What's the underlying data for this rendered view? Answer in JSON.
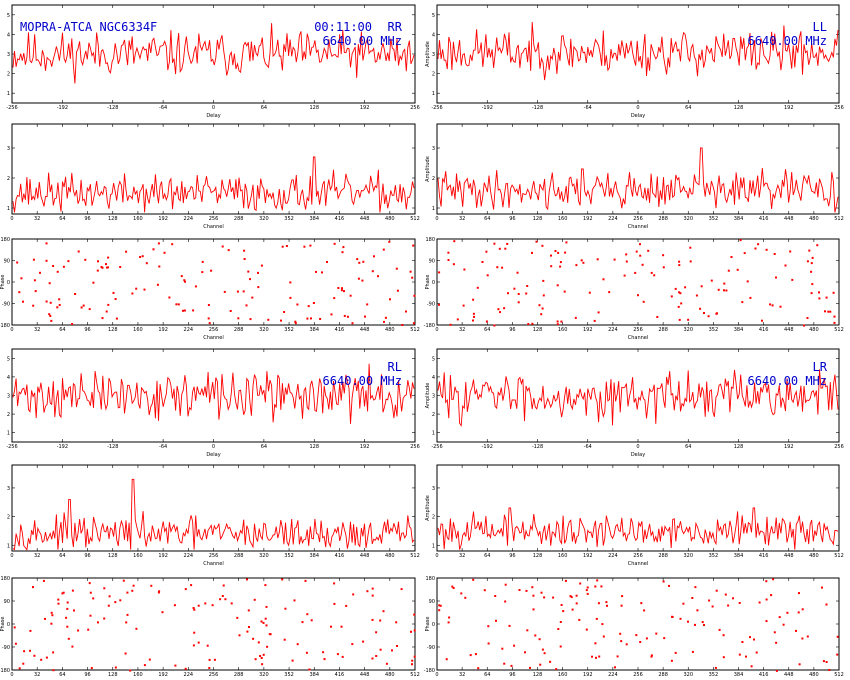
{
  "header": {
    "title": "MOPRA-ATCA NGC6334F",
    "time": "00:11:00",
    "frequency": "6640.00 MHz"
  },
  "colors": {
    "trace": "#ff0000",
    "annotation": "#0000cc",
    "frame": "#000000"
  },
  "panels": [
    {
      "id": "rr",
      "polarization": "RR",
      "frequency": "6640.00 MHz"
    },
    {
      "id": "ll",
      "polarization": "LL",
      "frequency": "6640.00 MHz"
    },
    {
      "id": "rl",
      "polarization": "RL",
      "frequency": "6640.00 MHz"
    },
    {
      "id": "lr",
      "polarization": "LR",
      "frequency": "6640.00 MHz"
    }
  ],
  "chart_data": [
    {
      "panel": "rr",
      "type": "line",
      "xlabel": "Delay",
      "ylabel": "",
      "xlim": [
        -256,
        256
      ],
      "xticks": [
        "-256",
        "-192",
        "-128",
        "-64",
        "0",
        "64",
        "128",
        "192",
        "256"
      ],
      "yticks": [
        "1",
        "2",
        "3",
        "4",
        "5"
      ],
      "ylim": [
        0.5,
        5.5
      ],
      "seed": 11,
      "mean": 3.0,
      "noise": 0.55,
      "peaks": []
    },
    {
      "panel": "ll",
      "type": "line",
      "xlabel": "Delay",
      "ylabel": "Amplitude",
      "xlim": [
        -256,
        256
      ],
      "xticks": [
        "-256",
        "-192",
        "-128",
        "-64",
        "0",
        "64",
        "128",
        "192",
        "256"
      ],
      "yticks": [
        "1",
        "2",
        "3",
        "4",
        "5"
      ],
      "ylim": [
        0.5,
        5.5
      ],
      "seed": 23,
      "mean": 3.1,
      "noise": 0.55,
      "peaks": []
    },
    {
      "panel": "rr",
      "type": "line",
      "xlabel": "Channel",
      "ylabel": "",
      "xlim": [
        0,
        512
      ],
      "xticks": [
        "0",
        "32",
        "64",
        "96",
        "128",
        "160",
        "192",
        "224",
        "256",
        "288",
        "320",
        "352",
        "384",
        "416",
        "448",
        "480",
        "512"
      ],
      "yticks": [
        "1",
        "2",
        "3"
      ],
      "ylim": [
        0.8,
        3.8
      ],
      "seed": 37,
      "mean": 1.5,
      "noise": 0.3,
      "peaks": [
        [
          0.75,
          2.7
        ]
      ]
    },
    {
      "panel": "ll",
      "type": "line",
      "xlabel": "Channel",
      "ylabel": "Amplitude",
      "xlim": [
        0,
        512
      ],
      "xticks": [
        "0",
        "32",
        "64",
        "96",
        "128",
        "160",
        "192",
        "224",
        "256",
        "288",
        "320",
        "352",
        "384",
        "416",
        "448",
        "480",
        "512"
      ],
      "yticks": [
        "1",
        "2",
        "3"
      ],
      "ylim": [
        0.8,
        3.8
      ],
      "seed": 41,
      "mean": 1.6,
      "noise": 0.3,
      "peaks": [
        [
          0.66,
          3.0
        ],
        [
          0.36,
          2.3
        ]
      ]
    },
    {
      "panel": "rr",
      "type": "scatter",
      "xlabel": "Channel",
      "ylabel": "Phase",
      "xlim": [
        0,
        512
      ],
      "xticks": [
        "0",
        "32",
        "64",
        "96",
        "128",
        "160",
        "192",
        "224",
        "256",
        "288",
        "320",
        "352",
        "384",
        "416",
        "448",
        "480",
        "512"
      ],
      "yticks": [
        "-180",
        "-90",
        "0",
        "90",
        "180"
      ],
      "ylim": [
        -180,
        180
      ],
      "seed": 53,
      "count": 150
    },
    {
      "panel": "ll",
      "type": "scatter",
      "xlabel": "Channel",
      "ylabel": "Phase",
      "xlim": [
        0,
        512
      ],
      "xticks": [
        "0",
        "32",
        "64",
        "96",
        "128",
        "160",
        "192",
        "224",
        "256",
        "288",
        "320",
        "352",
        "384",
        "416",
        "448",
        "480",
        "512"
      ],
      "yticks": [
        "-180",
        "-90",
        "0",
        "90",
        "180"
      ],
      "ylim": [
        -180,
        180
      ],
      "seed": 67,
      "count": 150
    },
    {
      "panel": "rl",
      "type": "line",
      "xlabel": "Delay",
      "ylabel": "",
      "xlim": [
        -256,
        256
      ],
      "xticks": [
        "-256",
        "-192",
        "-128",
        "-64",
        "0",
        "64",
        "128",
        "192",
        "256"
      ],
      "yticks": [
        "1",
        "2",
        "3",
        "4",
        "5"
      ],
      "ylim": [
        0.5,
        5.5
      ],
      "seed": 71,
      "mean": 3.0,
      "noise": 0.6,
      "peaks": []
    },
    {
      "panel": "lr",
      "type": "line",
      "xlabel": "Delay",
      "ylabel": "Amplitude",
      "xlim": [
        -256,
        256
      ],
      "xticks": [
        "-256",
        "-192",
        "-128",
        "-64",
        "0",
        "64",
        "128",
        "192",
        "256"
      ],
      "yticks": [
        "1",
        "2",
        "3",
        "4",
        "5"
      ],
      "ylim": [
        0.5,
        5.5
      ],
      "seed": 83,
      "mean": 3.0,
      "noise": 0.6,
      "peaks": []
    },
    {
      "panel": "rl",
      "type": "line",
      "xlabel": "Channel",
      "ylabel": "",
      "xlim": [
        0,
        512
      ],
      "xticks": [
        "0",
        "32",
        "64",
        "96",
        "128",
        "160",
        "192",
        "224",
        "256",
        "288",
        "320",
        "352",
        "384",
        "416",
        "448",
        "480",
        "512"
      ],
      "yticks": [
        "1",
        "2",
        "3"
      ],
      "ylim": [
        0.8,
        3.8
      ],
      "seed": 97,
      "mean": 1.4,
      "noise": 0.28,
      "peaks": [
        [
          0.3,
          3.3
        ],
        [
          0.14,
          2.6
        ]
      ]
    },
    {
      "panel": "lr",
      "type": "line",
      "xlabel": "Channel",
      "ylabel": "Amplitude",
      "xlim": [
        0,
        512
      ],
      "xticks": [
        "0",
        "32",
        "64",
        "96",
        "128",
        "160",
        "192",
        "224",
        "256",
        "288",
        "320",
        "352",
        "384",
        "416",
        "448",
        "480",
        "512"
      ],
      "yticks": [
        "1",
        "2",
        "3"
      ],
      "ylim": [
        0.8,
        3.8
      ],
      "seed": 101,
      "mean": 1.5,
      "noise": 0.28,
      "peaks": [
        [
          0.18,
          2.3
        ],
        [
          0.79,
          2.3
        ]
      ]
    },
    {
      "panel": "rl",
      "type": "scatter",
      "xlabel": "Channel",
      "ylabel": "Phase",
      "xlim": [
        0,
        512
      ],
      "xticks": [
        "0",
        "32",
        "64",
        "96",
        "128",
        "160",
        "192",
        "224",
        "256",
        "288",
        "320",
        "352",
        "384",
        "416",
        "448",
        "480",
        "512"
      ],
      "yticks": [
        "-180",
        "-90",
        "0",
        "90",
        "180"
      ],
      "ylim": [
        -180,
        180
      ],
      "seed": 113,
      "count": 150
    },
    {
      "panel": "lr",
      "type": "scatter",
      "xlabel": "Channel",
      "ylabel": "Phase",
      "xlim": [
        0,
        512
      ],
      "xticks": [
        "0",
        "32",
        "64",
        "96",
        "128",
        "160",
        "192",
        "224",
        "256",
        "288",
        "320",
        "352",
        "384",
        "416",
        "448",
        "480",
        "512"
      ],
      "yticks": [
        "-180",
        "-90",
        "0",
        "90",
        "180"
      ],
      "ylim": [
        -180,
        180
      ],
      "seed": 127,
      "count": 150
    }
  ]
}
